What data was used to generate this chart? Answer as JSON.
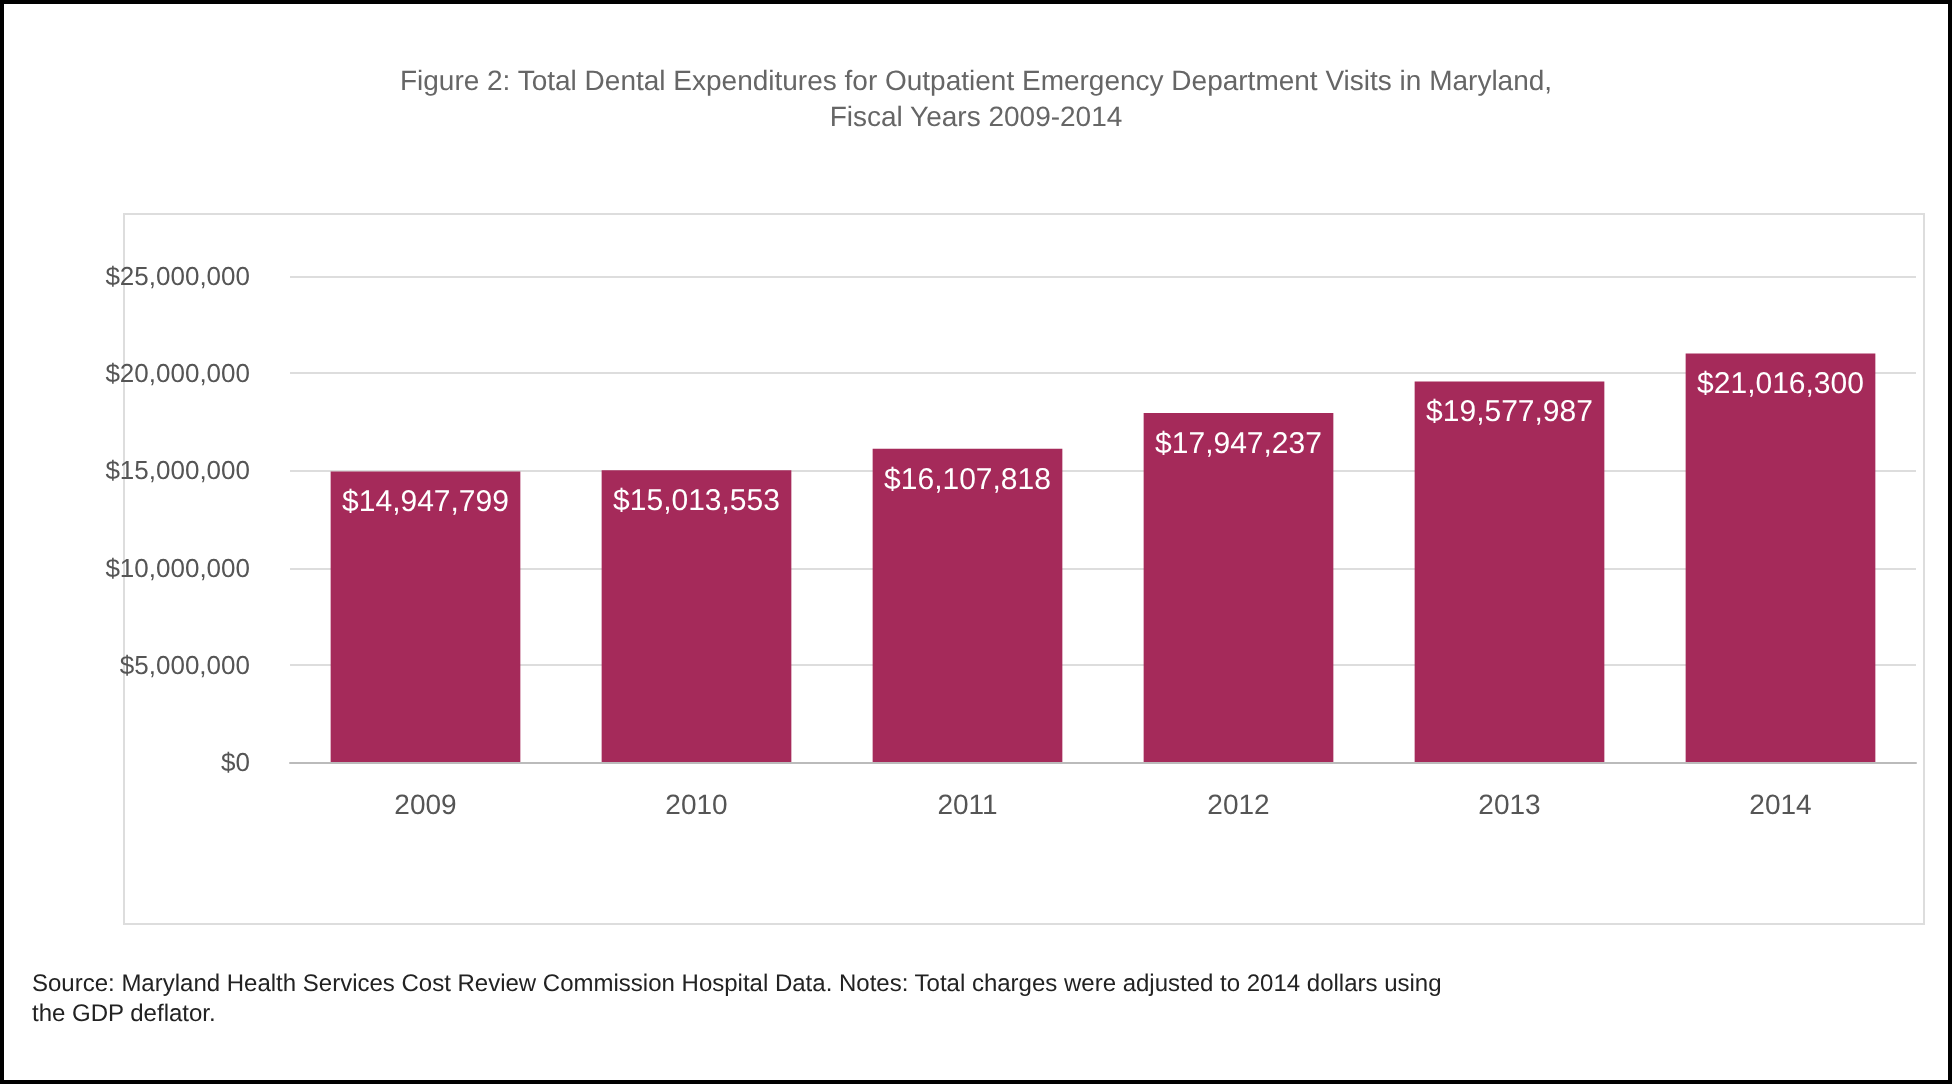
{
  "chart_data": {
    "type": "bar",
    "title": "Figure 2: Total Dental Expenditures for Outpatient Emergency Department Visits in Maryland,\nFiscal Years 2009-2014",
    "categories": [
      "2009",
      "2010",
      "2011",
      "2012",
      "2013",
      "2014"
    ],
    "values": [
      14947799,
      15013553,
      16107818,
      17947237,
      19577987,
      21016300
    ],
    "color": "#a52a5a",
    "ylim": [
      0,
      25000000
    ],
    "yticks": [
      {
        "value": 0,
        "label": "$0"
      },
      {
        "value": 5000000,
        "label": "$5,000,000"
      },
      {
        "value": 10000000,
        "label": "$10,000,000"
      },
      {
        "value": 15000000,
        "label": "$15,000,000"
      },
      {
        "value": 20000000,
        "label": "$20,000,000"
      },
      {
        "value": 25000000,
        "label": "$25,000,000"
      }
    ],
    "value_labels": [
      "$14,947,799",
      "$15,013,553",
      "$16,107,818",
      "$17,947,237",
      "$19,577,987",
      "$21,016,300"
    ],
    "grid": "y",
    "annotations": [
      "Source: Maryland Health Services Cost Review Commission Hospital Data. Notes: Total charges were adjusted to 2014 dollars using\nthe GDP deflator."
    ]
  }
}
